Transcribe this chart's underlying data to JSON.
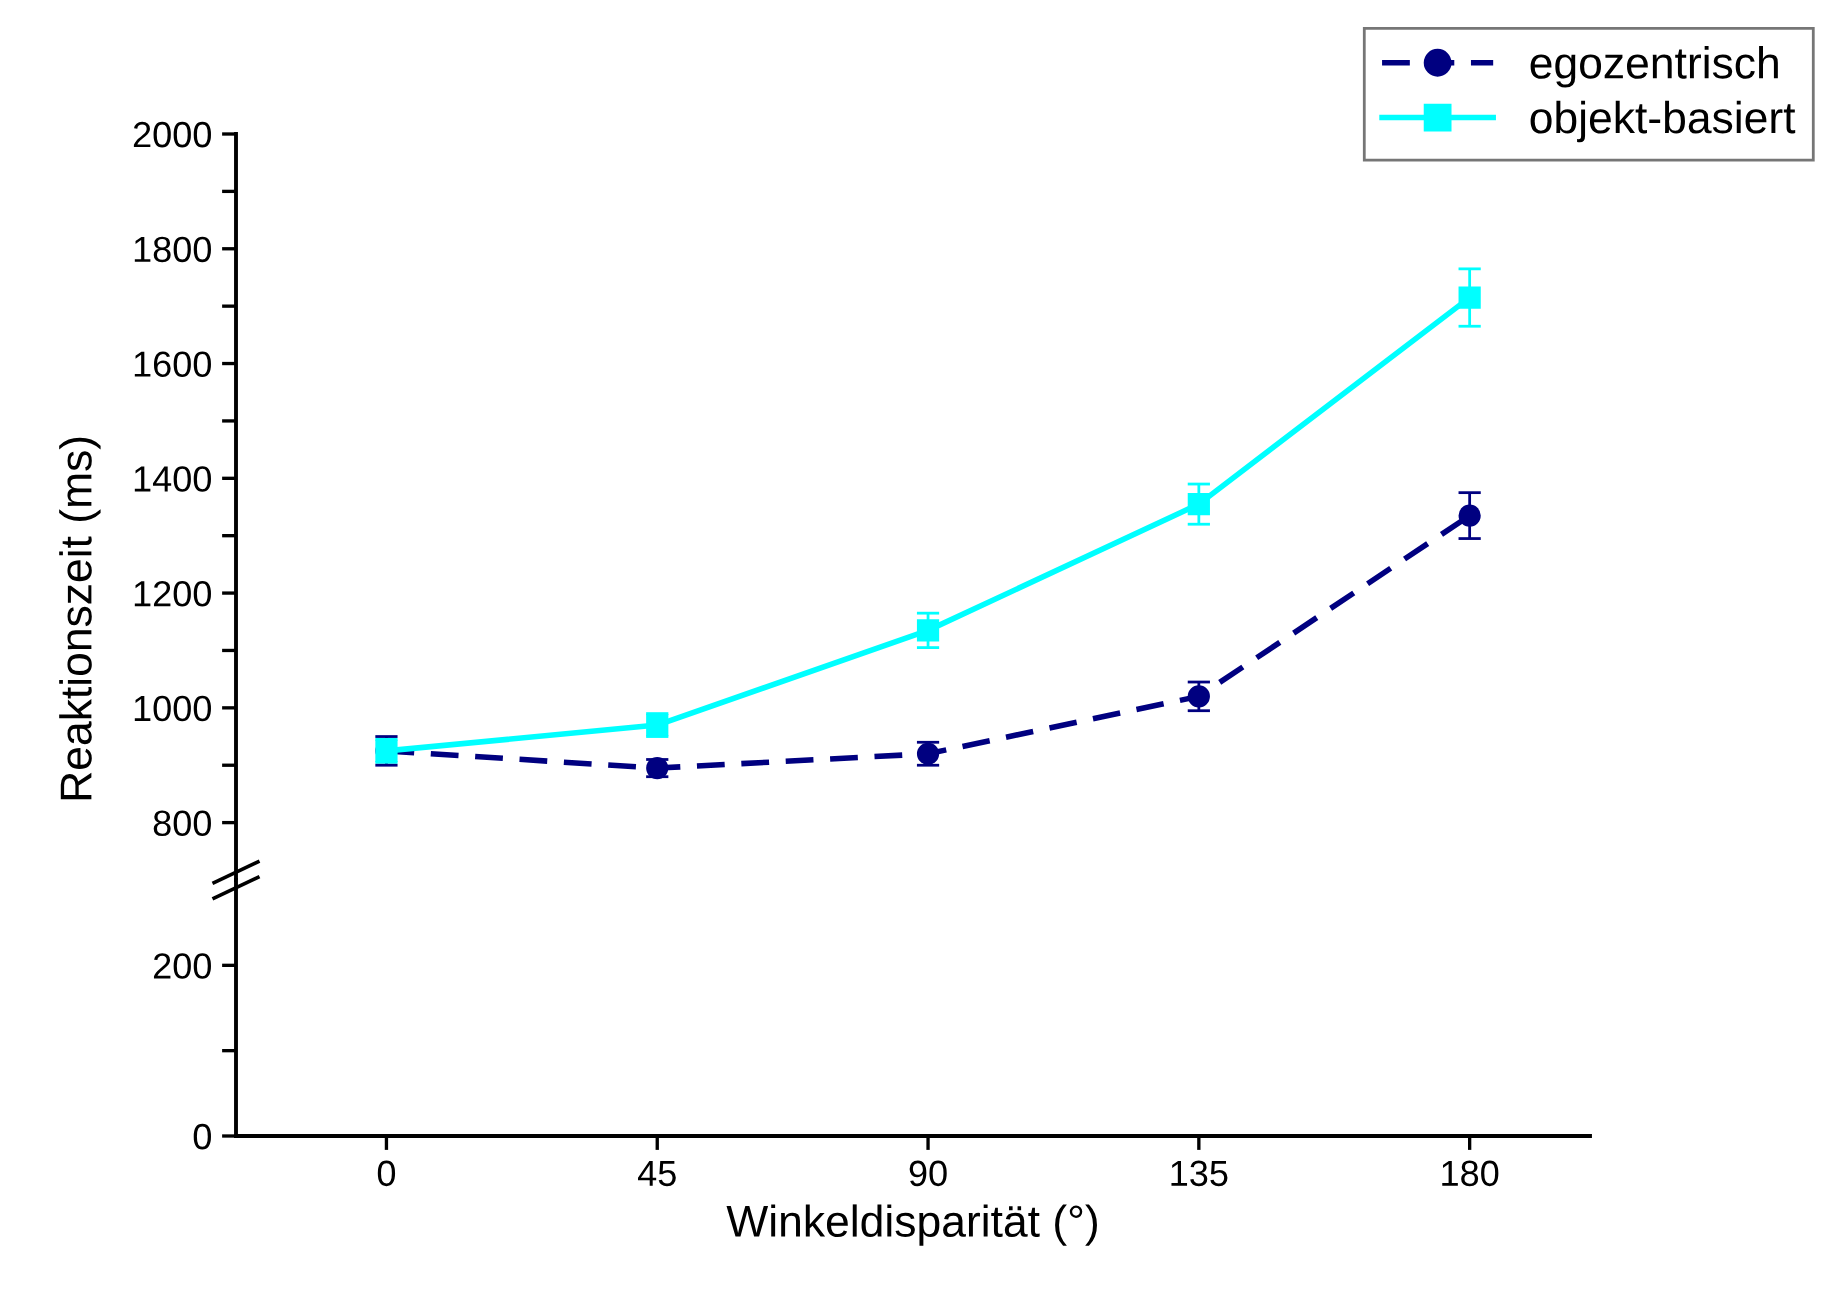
{
  "chart_data": [
    {
      "type": "line",
      "ylabel": "Reaktionszeit (ms)",
      "x": [
        0,
        45,
        90,
        135,
        180
      ],
      "ylim": [
        700,
        2000
      ],
      "yticks": [
        800,
        {
          "value": 900,
          "label": null
        },
        1000,
        {
          "value": 1100,
          "label": null
        },
        1200,
        {
          "value": 1300,
          "label": null
        },
        1400,
        {
          "value": 1500,
          "label": null
        },
        1600,
        {
          "value": 1700,
          "label": null
        },
        1800,
        {
          "value": 1900,
          "label": null
        },
        2000
      ],
      "tick_labels": "y",
      "legend": "top right",
      "grid": false,
      "series": [
        {
          "name": "egozentrisch",
          "color": "#000080",
          "marker": "circle",
          "line_style": "dashed",
          "values": [
            925,
            895,
            920,
            1020,
            1335
          ],
          "errors": [
            25,
            15,
            20,
            25,
            40
          ]
        },
        {
          "name": "objekt-basiert",
          "color": "#00ffff",
          "marker": "square",
          "line_style": "solid",
          "values": [
            925,
            970,
            1135,
            1355,
            1715
          ],
          "errors": [
            20,
            20,
            30,
            35,
            50
          ]
        }
      ]
    },
    {
      "type": "line",
      "xlabel": "Winkeldisparität (°)",
      "xlim": [
        -25,
        200
      ],
      "xticks": [
        0,
        45,
        90,
        135,
        180
      ],
      "ylim": [
        0,
        300
      ],
      "yticks": [
        0,
        {
          "value": 100,
          "label": null
        },
        200
      ],
      "grid": false
    }
  ]
}
